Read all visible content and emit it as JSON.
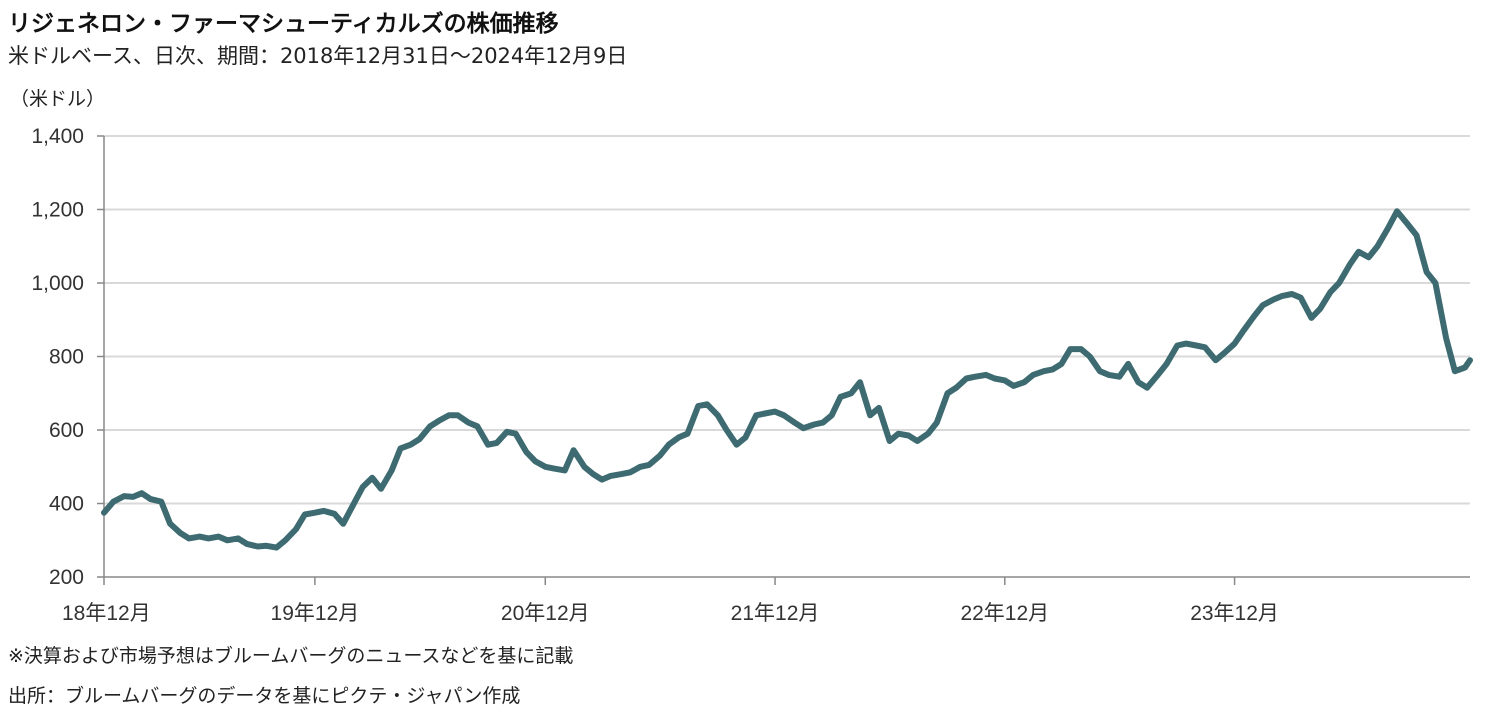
{
  "header": {
    "title": "リジェネロン・ファーマシューティカルズの株価推移",
    "subtitle": "米ドルベース、日次、期間：2018年12月31日～2024年12月9日",
    "unit": "（米ドル）"
  },
  "notes": {
    "note1": "※決算および市場予想はブルームバーグのニュースなどを基に記載",
    "source": "出所：ブルームバーグのデータを基にピクテ・ジャパン作成"
  },
  "colors": {
    "line": "#3d6b71",
    "grid": "#d9d9d9",
    "axis": "#888888"
  },
  "chart_data": {
    "type": "line",
    "title": "リジェネロン・ファーマシューティカルズの株価推移",
    "ylabel": "（米ドル）",
    "ylim": [
      200,
      1400
    ],
    "y_ticks": [
      "200",
      "400",
      "600",
      "800",
      "1,000",
      "1,200",
      "1,400"
    ],
    "y_tick_values": [
      200,
      400,
      600,
      800,
      1000,
      1200,
      1400
    ],
    "x_ticks": [
      "18年12月",
      "19年12月",
      "20年12月",
      "21年12月",
      "22年12月",
      "23年12月"
    ],
    "x_tick_values": [
      "2018-12",
      "2019-12",
      "2020-12",
      "2021-12",
      "2022-12",
      "2023-12"
    ],
    "xlim": [
      "2018-12-31",
      "2024-12-09"
    ],
    "grid": true,
    "series": [
      {
        "values": [
          [
            "2018-12-31",
            375
          ],
          [
            "2019-01-15",
            405
          ],
          [
            "2019-02-01",
            420
          ],
          [
            "2019-02-15",
            418
          ],
          [
            "2019-03-01",
            428
          ],
          [
            "2019-03-15",
            412
          ],
          [
            "2019-04-01",
            405
          ],
          [
            "2019-04-15",
            345
          ],
          [
            "2019-05-01",
            320
          ],
          [
            "2019-05-15",
            305
          ],
          [
            "2019-06-01",
            310
          ],
          [
            "2019-06-15",
            305
          ],
          [
            "2019-07-01",
            310
          ],
          [
            "2019-07-15",
            300
          ],
          [
            "2019-08-01",
            305
          ],
          [
            "2019-08-15",
            290
          ],
          [
            "2019-09-01",
            283
          ],
          [
            "2019-09-15",
            285
          ],
          [
            "2019-10-01",
            280
          ],
          [
            "2019-10-15",
            300
          ],
          [
            "2019-11-01",
            330
          ],
          [
            "2019-11-15",
            370
          ],
          [
            "2019-12-01",
            375
          ],
          [
            "2019-12-15",
            380
          ],
          [
            "2020-01-01",
            372
          ],
          [
            "2020-01-15",
            345
          ],
          [
            "2020-02-01",
            400
          ],
          [
            "2020-02-15",
            445
          ],
          [
            "2020-03-01",
            470
          ],
          [
            "2020-03-15",
            440
          ],
          [
            "2020-04-01",
            490
          ],
          [
            "2020-04-15",
            550
          ],
          [
            "2020-05-01",
            560
          ],
          [
            "2020-05-15",
            575
          ],
          [
            "2020-06-01",
            610
          ],
          [
            "2020-06-15",
            625
          ],
          [
            "2020-07-01",
            640
          ],
          [
            "2020-07-15",
            640
          ],
          [
            "2020-08-01",
            620
          ],
          [
            "2020-08-15",
            610
          ],
          [
            "2020-09-01",
            560
          ],
          [
            "2020-09-15",
            565
          ],
          [
            "2020-10-01",
            595
          ],
          [
            "2020-10-15",
            590
          ],
          [
            "2020-11-01",
            540
          ],
          [
            "2020-11-15",
            515
          ],
          [
            "2020-12-01",
            500
          ],
          [
            "2020-12-15",
            495
          ],
          [
            "2021-01-01",
            490
          ],
          [
            "2021-01-15",
            545
          ],
          [
            "2021-02-01",
            500
          ],
          [
            "2021-02-15",
            480
          ],
          [
            "2021-03-01",
            465
          ],
          [
            "2021-03-15",
            475
          ],
          [
            "2021-04-01",
            480
          ],
          [
            "2021-04-15",
            485
          ],
          [
            "2021-05-01",
            500
          ],
          [
            "2021-05-15",
            505
          ],
          [
            "2021-06-01",
            530
          ],
          [
            "2021-06-15",
            560
          ],
          [
            "2021-07-01",
            580
          ],
          [
            "2021-07-15",
            590
          ],
          [
            "2021-08-01",
            665
          ],
          [
            "2021-08-15",
            670
          ],
          [
            "2021-09-01",
            640
          ],
          [
            "2021-09-15",
            600
          ],
          [
            "2021-10-01",
            560
          ],
          [
            "2021-10-15",
            580
          ],
          [
            "2021-11-01",
            640
          ],
          [
            "2021-11-15",
            645
          ],
          [
            "2021-12-01",
            650
          ],
          [
            "2021-12-15",
            640
          ],
          [
            "2022-01-01",
            620
          ],
          [
            "2022-01-15",
            605
          ],
          [
            "2022-02-01",
            615
          ],
          [
            "2022-02-15",
            620
          ],
          [
            "2022-03-01",
            640
          ],
          [
            "2022-03-15",
            690
          ],
          [
            "2022-04-01",
            700
          ],
          [
            "2022-04-15",
            730
          ],
          [
            "2022-05-01",
            640
          ],
          [
            "2022-05-15",
            660
          ],
          [
            "2022-06-01",
            570
          ],
          [
            "2022-06-15",
            590
          ],
          [
            "2022-07-01",
            585
          ],
          [
            "2022-07-15",
            570
          ],
          [
            "2022-08-01",
            590
          ],
          [
            "2022-08-15",
            620
          ],
          [
            "2022-09-01",
            700
          ],
          [
            "2022-09-15",
            715
          ],
          [
            "2022-10-01",
            740
          ],
          [
            "2022-10-15",
            745
          ],
          [
            "2022-11-01",
            750
          ],
          [
            "2022-11-15",
            740
          ],
          [
            "2022-12-01",
            735
          ],
          [
            "2022-12-15",
            720
          ],
          [
            "2023-01-01",
            730
          ],
          [
            "2023-01-15",
            750
          ],
          [
            "2023-02-01",
            760
          ],
          [
            "2023-02-15",
            765
          ],
          [
            "2023-03-01",
            780
          ],
          [
            "2023-03-15",
            820
          ],
          [
            "2023-04-01",
            820
          ],
          [
            "2023-04-15",
            800
          ],
          [
            "2023-05-01",
            760
          ],
          [
            "2023-05-15",
            750
          ],
          [
            "2023-06-01",
            745
          ],
          [
            "2023-06-15",
            780
          ],
          [
            "2023-07-01",
            730
          ],
          [
            "2023-07-15",
            715
          ],
          [
            "2023-08-01",
            750
          ],
          [
            "2023-08-15",
            780
          ],
          [
            "2023-09-01",
            830
          ],
          [
            "2023-09-15",
            835
          ],
          [
            "2023-10-01",
            830
          ],
          [
            "2023-10-15",
            825
          ],
          [
            "2023-11-01",
            790
          ],
          [
            "2023-11-15",
            810
          ],
          [
            "2023-12-01",
            835
          ],
          [
            "2023-12-15",
            870
          ],
          [
            "2024-01-01",
            910
          ],
          [
            "2024-01-15",
            940
          ],
          [
            "2024-02-01",
            955
          ],
          [
            "2024-02-15",
            965
          ],
          [
            "2024-03-01",
            970
          ],
          [
            "2024-03-15",
            960
          ],
          [
            "2024-04-01",
            905
          ],
          [
            "2024-04-15",
            930
          ],
          [
            "2024-05-01",
            975
          ],
          [
            "2024-05-15",
            1000
          ],
          [
            "2024-06-01",
            1050
          ],
          [
            "2024-06-15",
            1085
          ],
          [
            "2024-07-01",
            1070
          ],
          [
            "2024-07-15",
            1100
          ],
          [
            "2024-08-01",
            1150
          ],
          [
            "2024-08-15",
            1195
          ],
          [
            "2024-09-01",
            1160
          ],
          [
            "2024-09-15",
            1130
          ],
          [
            "2024-10-01",
            1030
          ],
          [
            "2024-10-15",
            1000
          ],
          [
            "2024-11-01",
            850
          ],
          [
            "2024-11-15",
            760
          ],
          [
            "2024-12-01",
            770
          ],
          [
            "2024-12-09",
            790
          ]
        ]
      }
    ]
  }
}
